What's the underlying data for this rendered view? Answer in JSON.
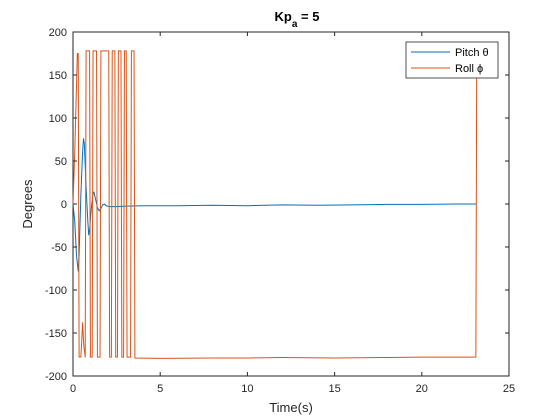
{
  "chart_data": {
    "type": "line",
    "title": "Kp",
    "title_subscript": "a",
    "title_suffix": " = 5",
    "xlabel": "Time(s)",
    "ylabel": "Degrees",
    "xlim": [
      0,
      25
    ],
    "ylim": [
      -200,
      200
    ],
    "x_ticks": [
      0,
      5,
      10,
      15,
      20,
      25
    ],
    "y_ticks": [
      -200,
      -150,
      -100,
      -50,
      0,
      50,
      100,
      150,
      200
    ],
    "grid": false,
    "legend_position": "top-right",
    "series": [
      {
        "name": "Pitch θ",
        "color": "#0072BD",
        "points": [
          [
            0,
            0
          ],
          [
            0.1,
            -20
          ],
          [
            0.2,
            -60
          ],
          [
            0.3,
            -78
          ],
          [
            0.35,
            -60
          ],
          [
            0.45,
            10
          ],
          [
            0.55,
            60
          ],
          [
            0.6,
            76
          ],
          [
            0.65,
            70
          ],
          [
            0.75,
            20
          ],
          [
            0.85,
            -20
          ],
          [
            0.9,
            -36
          ],
          [
            0.95,
            -30
          ],
          [
            1.05,
            -5
          ],
          [
            1.15,
            12
          ],
          [
            1.2,
            14
          ],
          [
            1.3,
            5
          ],
          [
            1.4,
            -4
          ],
          [
            1.5,
            -8
          ],
          [
            1.6,
            -5
          ],
          [
            1.7,
            -1
          ],
          [
            1.8,
            0
          ],
          [
            1.9,
            -2
          ],
          [
            2.1,
            -3
          ],
          [
            2.5,
            -3
          ],
          [
            3,
            -2.5
          ],
          [
            4,
            -2
          ],
          [
            6,
            -2
          ],
          [
            8,
            -1.5
          ],
          [
            10,
            -2
          ],
          [
            12,
            -1
          ],
          [
            14,
            -1.5
          ],
          [
            16,
            -1
          ],
          [
            18,
            -0.5
          ],
          [
            20,
            -0.5
          ],
          [
            22,
            0
          ],
          [
            23.1,
            0
          ]
        ]
      },
      {
        "name": "Roll ϕ",
        "color": "#D95319",
        "points": [
          [
            0,
            0
          ],
          [
            0.1,
            60
          ],
          [
            0.25,
            175
          ],
          [
            0.3,
            175
          ],
          [
            0.35,
            -178
          ],
          [
            0.45,
            -178
          ],
          [
            0.5,
            -160
          ],
          [
            0.55,
            -138
          ],
          [
            0.62,
            -165
          ],
          [
            0.7,
            -178
          ],
          [
            0.75,
            178
          ],
          [
            0.95,
            178
          ],
          [
            1.0,
            -178
          ],
          [
            1.1,
            -178
          ],
          [
            1.15,
            178
          ],
          [
            1.35,
            178
          ],
          [
            1.4,
            -178
          ],
          [
            1.55,
            -178
          ],
          [
            1.6,
            178
          ],
          [
            2.05,
            178
          ],
          [
            2.1,
            -178
          ],
          [
            2.2,
            -178
          ],
          [
            2.25,
            178
          ],
          [
            2.4,
            178
          ],
          [
            2.45,
            -178
          ],
          [
            2.55,
            -178
          ],
          [
            2.6,
            178
          ],
          [
            2.75,
            178
          ],
          [
            2.8,
            -178
          ],
          [
            2.9,
            -178
          ],
          [
            2.95,
            178
          ],
          [
            3.05,
            178
          ],
          [
            3.1,
            -178
          ],
          [
            3.3,
            -178
          ],
          [
            3.35,
            178
          ],
          [
            3.5,
            178
          ],
          [
            3.55,
            -179
          ],
          [
            5,
            -179.5
          ],
          [
            8,
            -179
          ],
          [
            10,
            -179
          ],
          [
            12,
            -178.5
          ],
          [
            15,
            -179
          ],
          [
            18,
            -178.5
          ],
          [
            20,
            -178
          ],
          [
            23.1,
            -178
          ],
          [
            23.15,
            178
          ]
        ]
      }
    ]
  }
}
